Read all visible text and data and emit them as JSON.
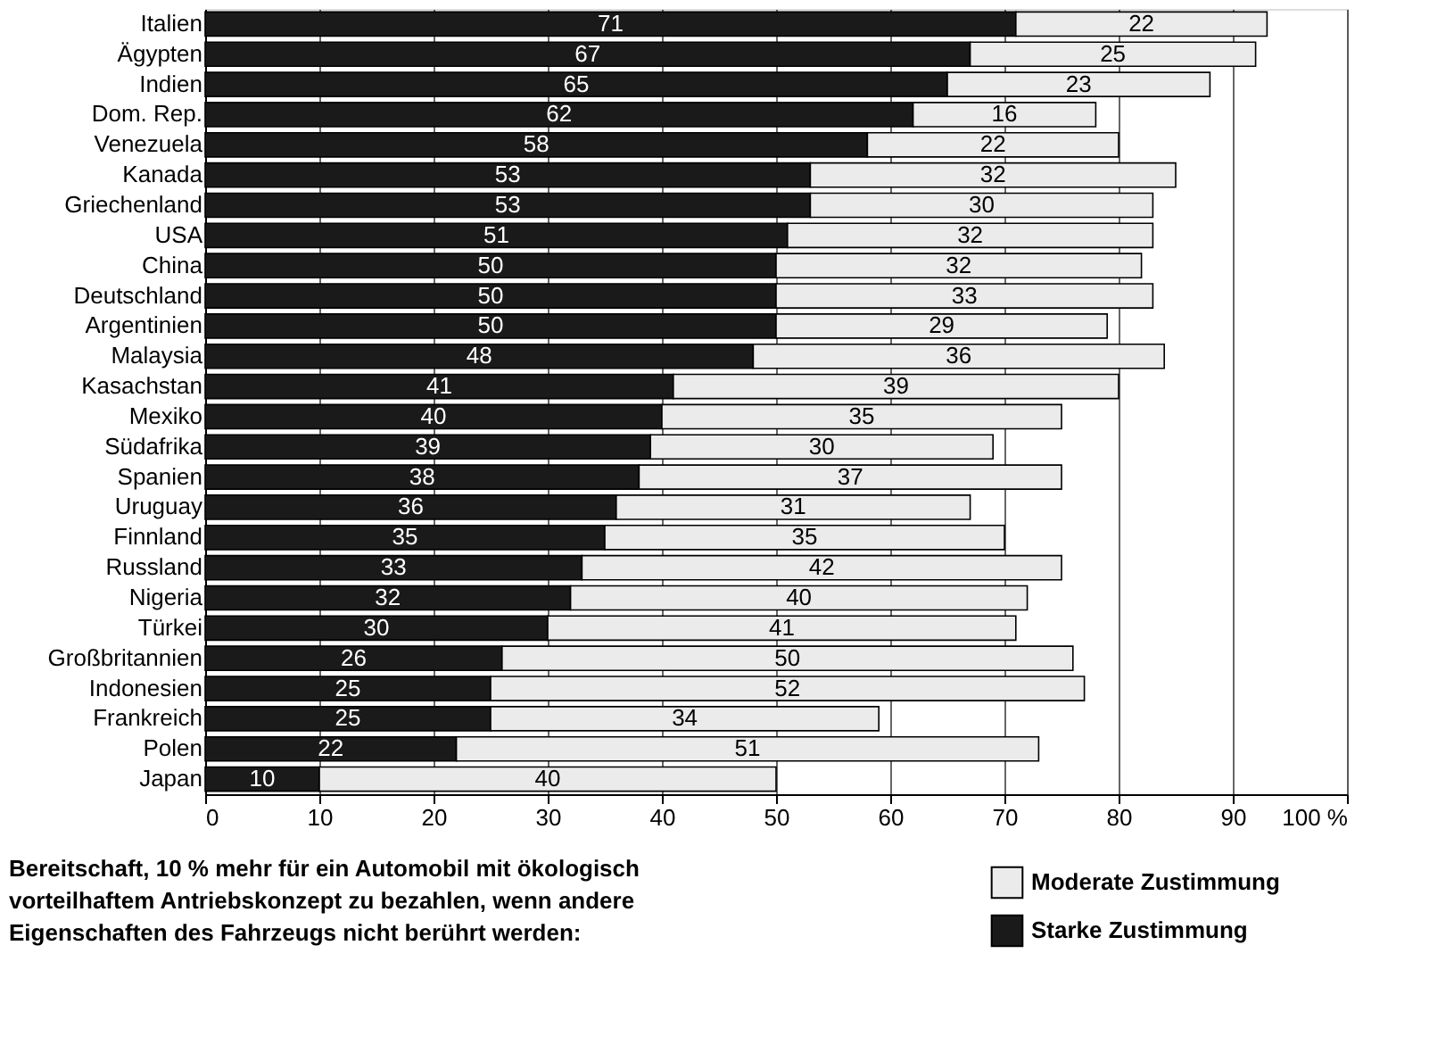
{
  "chart_data": {
    "type": "bar",
    "orientation": "horizontal",
    "stacked": true,
    "data_labels": true,
    "grid": "x",
    "legend": "bottom right",
    "categories": [
      "Italien",
      "Ägypten",
      "Indien",
      "Dom. Rep.",
      "Venezuela",
      "Kanada",
      "Griechenland",
      "USA",
      "China",
      "Deutschland",
      "Argentinien",
      "Malaysia",
      "Kasachstan",
      "Mexiko",
      "Südafrika",
      "Spanien",
      "Uruguay",
      "Finnland",
      "Russland",
      "Nigeria",
      "Türkei",
      "Großbritannien",
      "Indonesien",
      "Frankreich",
      "Polen",
      "Japan"
    ],
    "series": [
      {
        "name": "Starke Zustimmung",
        "color": "#1a1a1a",
        "values": [
          71,
          67,
          65,
          62,
          58,
          53,
          53,
          51,
          50,
          50,
          50,
          48,
          41,
          40,
          39,
          38,
          36,
          35,
          33,
          32,
          30,
          26,
          25,
          25,
          22,
          10
        ]
      },
      {
        "name": "Moderate Zustimmung",
        "color": "#ebebeb",
        "values": [
          22,
          25,
          23,
          16,
          22,
          32,
          30,
          32,
          32,
          33,
          29,
          36,
          39,
          35,
          30,
          37,
          31,
          35,
          42,
          40,
          41,
          50,
          52,
          34,
          51,
          40
        ]
      }
    ],
    "xlim": [
      0,
      100
    ],
    "xticks": [
      0,
      10,
      20,
      30,
      40,
      50,
      60,
      70,
      80,
      90,
      {
        "value": 100,
        "label": "100 %"
      }
    ],
    "annotations": [
      "Bereitschaft, 10 % mehr für ein Automobil mit ökologisch vorteilhaftem Antriebskonzept zu bezahlen, wenn andere Eigenschaften des Fahrzeugs nicht berührt werden:"
    ]
  }
}
